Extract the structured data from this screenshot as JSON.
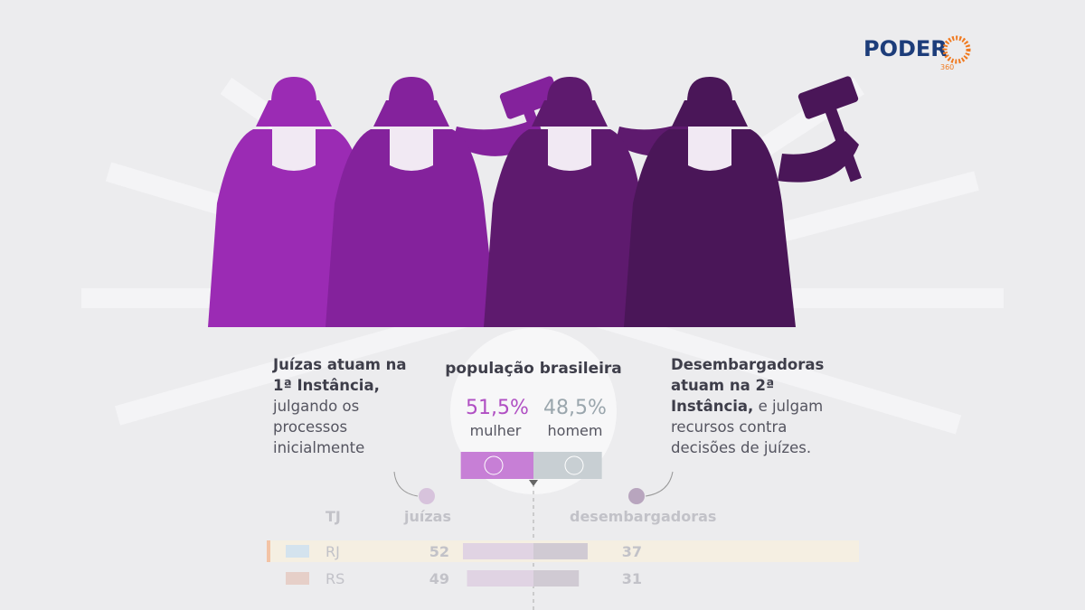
{
  "brand": {
    "name": "PODER",
    "sub": "360"
  },
  "left_note": {
    "bold": "Juízas atuam na 1ª Instância,",
    "text": "julgando os processos inicialmente"
  },
  "right_note": {
    "bold": "Desembargadoras atuam na 2ª Instância,",
    "text": "e julgam recursos contra decisões de juízes."
  },
  "population": {
    "title": "população brasileira",
    "women": {
      "value": 51.5,
      "label": "51,5%",
      "name": "mulher"
    },
    "men": {
      "value": 48.5,
      "label": "48,5%",
      "name": "homem"
    }
  },
  "table": {
    "headers": [
      "TJ",
      "juízas",
      "desembargadoras"
    ],
    "rows": [
      [
        "RJ",
        52,
        37
      ],
      [
        "RS",
        49,
        31
      ]
    ]
  }
}
